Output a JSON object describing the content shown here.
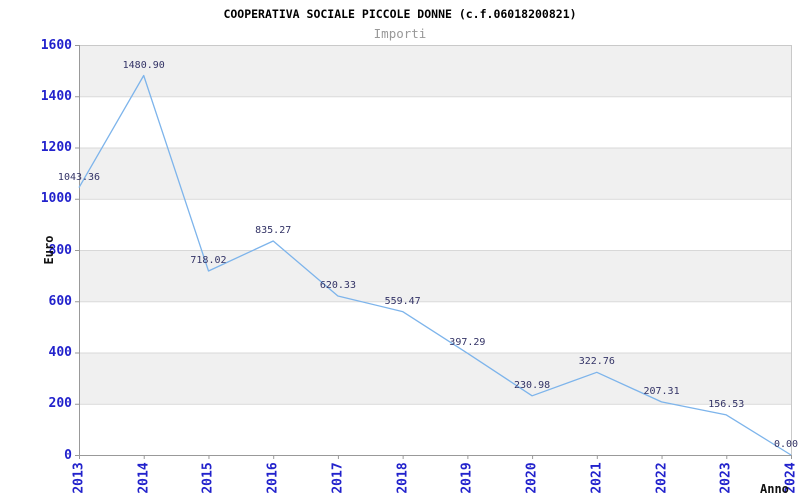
{
  "title": "COOPERATIVA SOCIALE PICCOLE DONNE (c.f.06018200821)",
  "subtitle": "Importi",
  "chart_data": {
    "type": "line",
    "title": "COOPERATIVA SOCIALE PICCOLE DONNE (c.f.06018200821)",
    "subtitle": "Importi",
    "xlabel": "Anno",
    "ylabel": "Euro",
    "categories": [
      "2013",
      "2014",
      "2015",
      "2016",
      "2017",
      "2018",
      "2019",
      "2020",
      "2021",
      "2022",
      "2023",
      "2024"
    ],
    "values": [
      1043.36,
      1480.9,
      718.02,
      835.27,
      620.33,
      559.47,
      397.29,
      230.98,
      322.76,
      207.31,
      156.53,
      0.0
    ],
    "value_labels": [
      "1043.36",
      "1480.90",
      "718.02",
      "835.27",
      "620.33",
      "559.47",
      "397.29",
      "230.98",
      "322.76",
      "207.31",
      "156.53",
      "0.00"
    ],
    "ylim": [
      0,
      1600
    ],
    "ytick_step": 200,
    "grid": true,
    "alternating_bands": true,
    "legend_position": "none",
    "colors": {
      "line": "#7db4eb",
      "band": "#f0f0f0",
      "gridline": "#d8d8d8",
      "plot_border": "#c9c9c9",
      "axis": "#999999",
      "tick_label": "#2222cc",
      "data_label": "#333366",
      "title": "#000000",
      "subtitle": "#999999",
      "background": "#ffffff"
    }
  }
}
